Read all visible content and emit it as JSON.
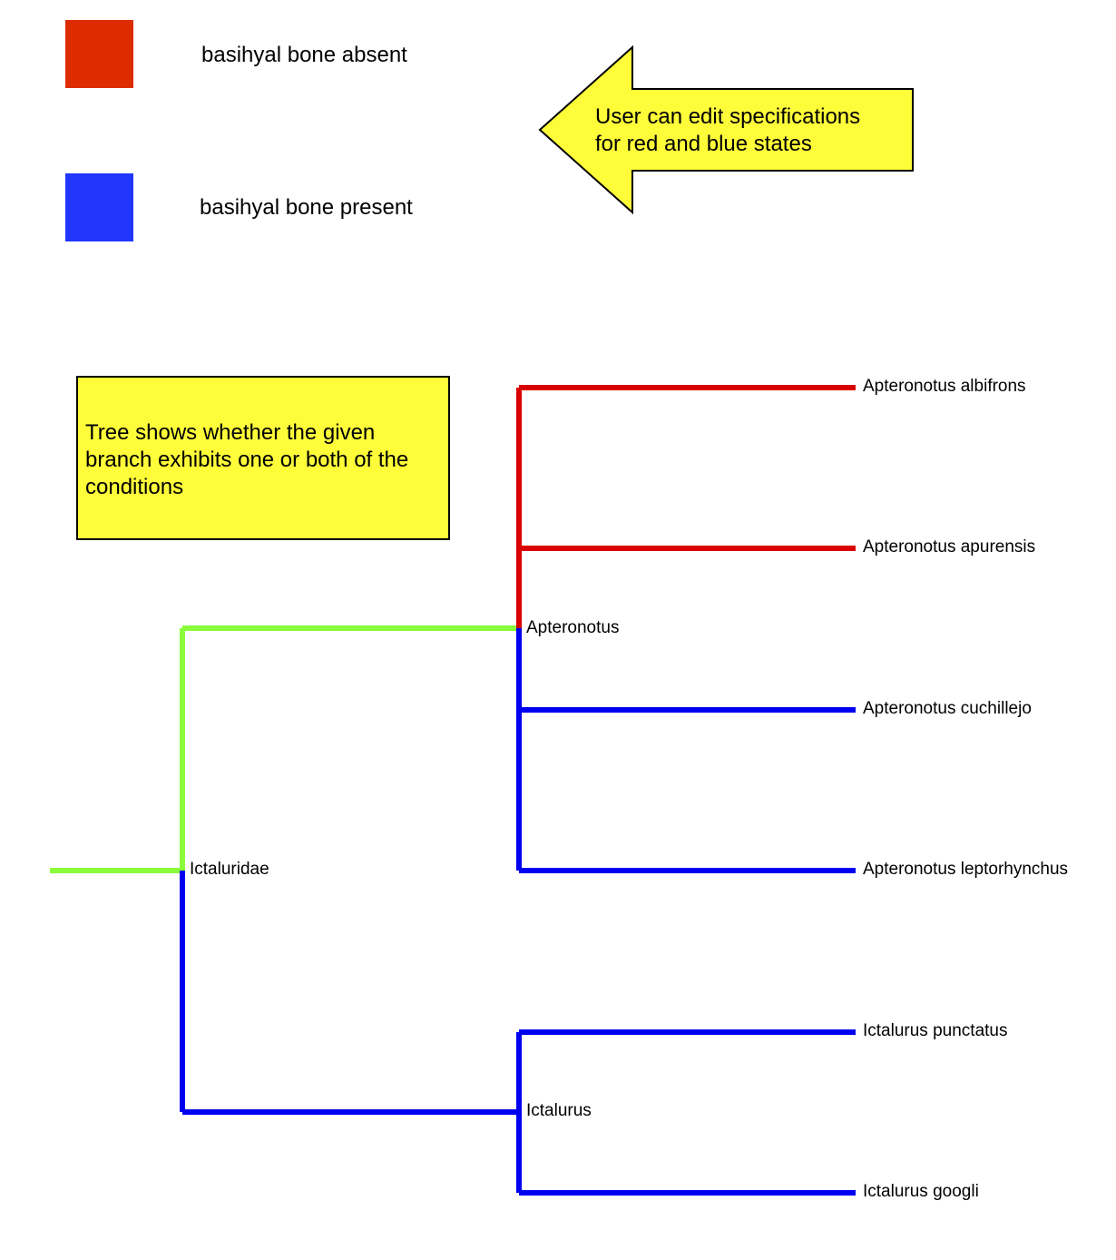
{
  "legend": {
    "items": [
      {
        "label": "basihyal bone absent",
        "color": "#dd2c00"
      },
      {
        "label": "basihyal bone present",
        "color": "#2236fd"
      }
    ]
  },
  "callouts": {
    "arrow_text_line1": "User can edit specifications",
    "arrow_text_line2": "for red and blue states",
    "note_text": "Tree shows whether the given branch exhibits one or both of the conditions"
  },
  "tree": {
    "colors": {
      "both": "#8afc3c",
      "absent": "#d90000",
      "present": "#0000f0"
    },
    "internal_nodes": {
      "root": "Ictaluridae",
      "clade_a": "Apteronotus",
      "clade_b": "Ictalurus"
    },
    "tips": [
      "Apteronotus albifrons",
      "Apteronotus apurensis",
      "Apteronotus cuchillejo",
      "Apteronotus leptorhynchus",
      "Ictalurus punctatus",
      "Ictalurus googli"
    ]
  }
}
